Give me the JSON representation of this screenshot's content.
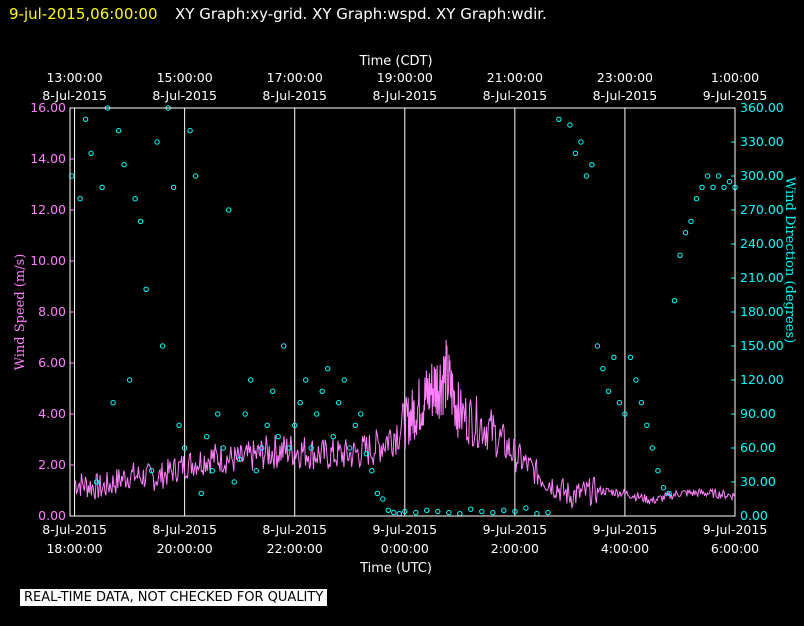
{
  "header": {
    "date": "9-jul-2015,06:00:00",
    "title": "XY Graph:xy-grid.  XY Graph:wspd.  XY Graph:wdir."
  },
  "footer": {
    "quality_note": "REAL-TIME DATA, NOT CHECKED FOR QUALITY"
  },
  "colors": {
    "wind_speed": "#ff80ff",
    "wind_direction": "#00ffff",
    "grid": "#ffffff",
    "background": "#000000",
    "header_date": "#ffff00"
  },
  "chart_data": {
    "type": "line",
    "title": "",
    "x_top_label": "Time (CDT)",
    "x_bottom_label": "Time (UTC)",
    "ylabel_left": "Wind Speed (m/s)",
    "ylabel_right": "Wind Direction (degrees)",
    "x_range_utc": [
      "2015-07-08 17:55",
      "2015-07-09 06:00"
    ],
    "ylim_left": [
      0,
      16
    ],
    "ylim_right": [
      0,
      360
    ],
    "grid": true,
    "legend": "none",
    "top_ticks": [
      {
        "time": "13:00:00",
        "date": "8-Jul-2015"
      },
      {
        "time": "15:00:00",
        "date": "8-Jul-2015"
      },
      {
        "time": "17:00:00",
        "date": "8-Jul-2015"
      },
      {
        "time": "19:00:00",
        "date": "8-Jul-2015"
      },
      {
        "time": "21:00:00",
        "date": "8-Jul-2015"
      },
      {
        "time": "23:00:00",
        "date": "8-Jul-2015"
      },
      {
        "time": "1:00:00",
        "date": "9-Jul-2015"
      }
    ],
    "bottom_ticks": [
      {
        "date": "8-Jul-2015",
        "time": "18:00:00"
      },
      {
        "date": "8-Jul-2015",
        "time": "20:00:00"
      },
      {
        "date": "8-Jul-2015",
        "time": "22:00:00"
      },
      {
        "date": "9-Jul-2015",
        "time": "0:00:00"
      },
      {
        "date": "9-Jul-2015",
        "time": "2:00:00"
      },
      {
        "date": "9-Jul-2015",
        "time": "4:00:00"
      },
      {
        "date": "9-Jul-2015",
        "time": "6:00:00"
      }
    ],
    "left_ticks": [
      "0.00",
      "2.00",
      "4.00",
      "6.00",
      "8.00",
      "10.00",
      "12.00",
      "14.00",
      "16.00"
    ],
    "right_ticks": [
      "0.00",
      "30.00",
      "60.00",
      "90.00",
      "120.00",
      "150.00",
      "180.00",
      "210.00",
      "240.00",
      "270.00",
      "300.00",
      "330.00",
      "360.00"
    ],
    "series": [
      {
        "name": "wspd",
        "style": "line",
        "axis": "left",
        "x_hours_utc": [
          18.0,
          18.5,
          19.0,
          19.5,
          20.0,
          20.5,
          21.0,
          21.5,
          22.0,
          22.5,
          23.0,
          23.5,
          24.0,
          24.25,
          24.5,
          24.75,
          25.0,
          25.5,
          26.0,
          26.5,
          27.0,
          27.5,
          28.0,
          28.5,
          29.0,
          29.5,
          30.0
        ],
        "values": [
          1.3,
          1.1,
          1.6,
          1.5,
          2.0,
          2.3,
          2.2,
          2.5,
          2.6,
          2.4,
          2.4,
          2.7,
          3.6,
          4.3,
          5.0,
          5.5,
          4.0,
          3.5,
          2.4,
          1.5,
          0.8,
          1.0,
          0.9,
          0.6,
          0.9,
          0.9,
          0.8
        ]
      },
      {
        "name": "wdir",
        "style": "scatter",
        "axis": "right",
        "x_hours_utc": [
          17.95,
          18.1,
          18.2,
          18.3,
          18.4,
          18.5,
          18.6,
          18.7,
          18.8,
          18.9,
          19.0,
          19.1,
          19.2,
          19.3,
          19.4,
          19.5,
          19.6,
          19.7,
          19.8,
          19.9,
          20.0,
          20.1,
          20.2,
          20.3,
          20.4,
          20.5,
          20.6,
          20.7,
          20.8,
          20.9,
          21.0,
          21.1,
          21.2,
          21.3,
          21.4,
          21.5,
          21.6,
          21.7,
          21.8,
          21.9,
          22.0,
          22.1,
          22.2,
          22.3,
          22.4,
          22.5,
          22.6,
          22.7,
          22.8,
          22.9,
          23.0,
          23.1,
          23.2,
          23.3,
          23.4,
          23.5,
          23.6,
          23.7,
          23.8,
          23.9,
          24.0,
          24.2,
          24.4,
          24.6,
          24.8,
          25.0,
          25.2,
          25.4,
          25.6,
          25.8,
          26.0,
          26.2,
          26.4,
          26.6,
          26.8,
          27.0,
          27.1,
          27.2,
          27.3,
          27.4,
          27.5,
          27.6,
          27.7,
          27.8,
          27.9,
          28.0,
          28.1,
          28.2,
          28.3,
          28.4,
          28.5,
          28.6,
          28.7,
          28.8,
          28.9,
          29.0,
          29.1,
          29.2,
          29.3,
          29.4,
          29.5,
          29.6,
          29.7,
          29.8,
          29.9,
          30.0
        ],
        "values": [
          300,
          280,
          350,
          320,
          30,
          290,
          360,
          100,
          340,
          310,
          120,
          280,
          260,
          200,
          40,
          330,
          150,
          360,
          290,
          80,
          60,
          340,
          300,
          20,
          70,
          40,
          90,
          60,
          270,
          30,
          50,
          90,
          120,
          40,
          60,
          80,
          110,
          70,
          150,
          60,
          80,
          100,
          120,
          60,
          90,
          110,
          130,
          70,
          100,
          120,
          60,
          80,
          90,
          55,
          40,
          20,
          15,
          5,
          3,
          2,
          4,
          3,
          5,
          4,
          3,
          2,
          6,
          4,
          3,
          5,
          4,
          7,
          2,
          3,
          350,
          345,
          320,
          330,
          300,
          310,
          150,
          130,
          110,
          140,
          100,
          90,
          140,
          120,
          100,
          80,
          60,
          40,
          25,
          20,
          190,
          230,
          250,
          260,
          280,
          290,
          300,
          290,
          300,
          290,
          295,
          290
        ]
      }
    ]
  }
}
